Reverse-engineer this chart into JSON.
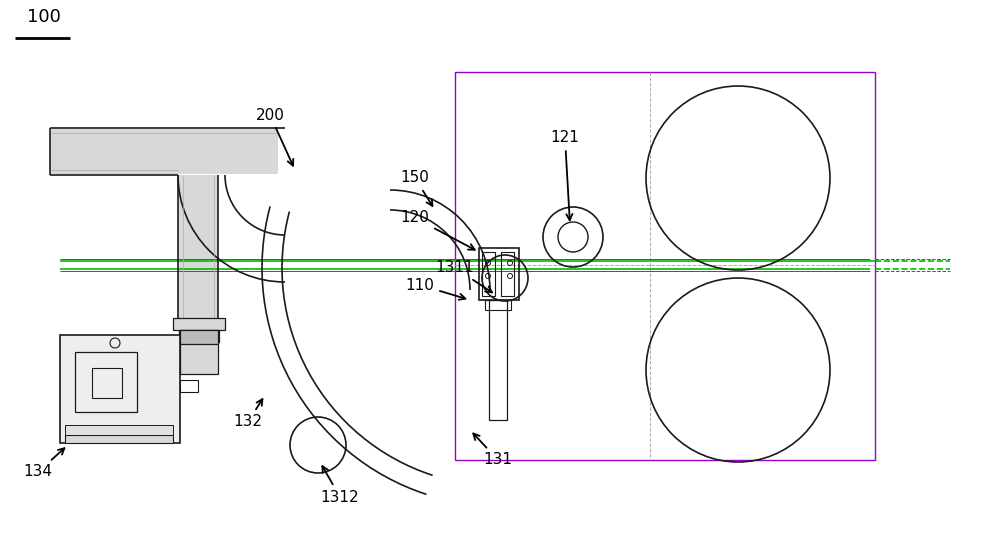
{
  "bg_color": "#ffffff",
  "line_color": "#1a1a1a",
  "green_color": "#00bb00",
  "magenta_color": "#cc00cc",
  "purple_color": "#9900cc",
  "gray_fill": "#d8d8d8",
  "gray_edge": "#888888",
  "figsize": [
    10.0,
    5.51
  ],
  "dpi": 100,
  "labels": [
    "100",
    "200",
    "150",
    "120",
    "121",
    "110",
    "1311",
    "131",
    "1312",
    "132",
    "134"
  ]
}
